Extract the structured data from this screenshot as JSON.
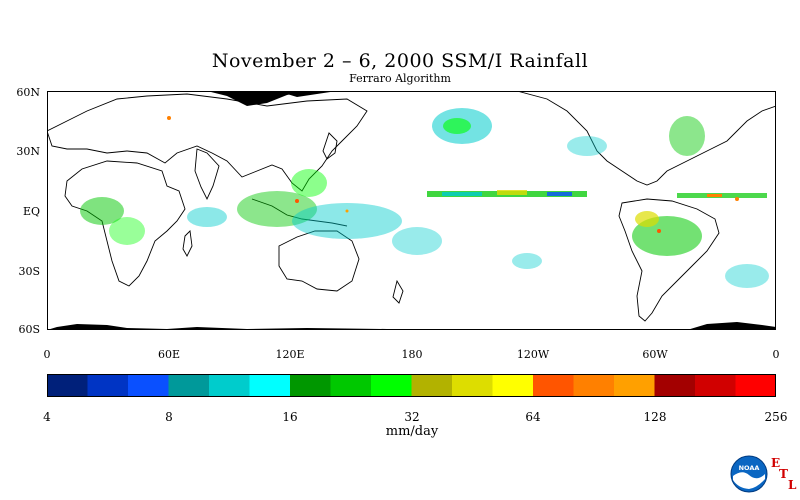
{
  "title": "November 2 – 6, 2000 SSM/I Rainfall",
  "subtitle": "Ferraro Algorithm",
  "lat_labels": [
    "60N",
    "30N",
    "EQ",
    "30S",
    "60S"
  ],
  "lon_labels": [
    "0",
    "60E",
    "120E",
    "180",
    "120W",
    "60W",
    "0"
  ],
  "colorbar": {
    "tick_labels": [
      "4",
      "8",
      "16",
      "32",
      "64",
      "128",
      "256"
    ],
    "units": "mm/day",
    "colors": [
      "#00207a",
      "#0034c4",
      "#0a50ff",
      "#00999a",
      "#00cccc",
      "#00ffff",
      "#009700",
      "#00c800",
      "#00ff00",
      "#b2b200",
      "#dddd00",
      "#ffff00",
      "#ff5500",
      "#ff8000",
      "#ffa000",
      "#a30000",
      "#d10000",
      "#ff0000"
    ]
  },
  "logo": {
    "text": "NOAA",
    "letters": [
      "E",
      "T",
      "L"
    ]
  }
}
